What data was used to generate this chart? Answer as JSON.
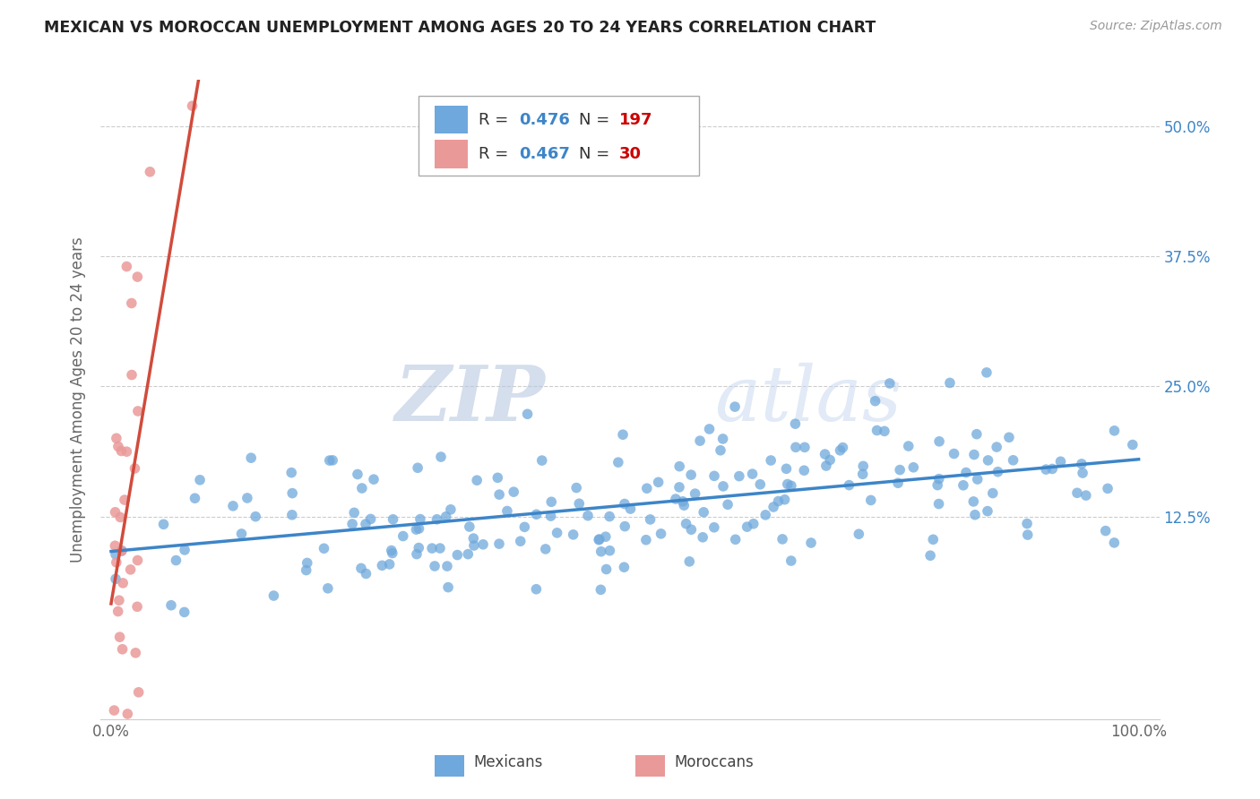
{
  "title": "MEXICAN VS MOROCCAN UNEMPLOYMENT AMONG AGES 20 TO 24 YEARS CORRELATION CHART",
  "source": "Source: ZipAtlas.com",
  "ylabel": "Unemployment Among Ages 20 to 24 years",
  "ytick_values": [
    0.125,
    0.25,
    0.375,
    0.5
  ],
  "ytick_labels": [
    "12.5%",
    "25.0%",
    "37.5%",
    "50.0%"
  ],
  "xlim": [
    -0.01,
    1.02
  ],
  "ylim": [
    -0.07,
    0.545
  ],
  "blue_color": "#6fa8dc",
  "pink_color": "#ea9999",
  "blue_line_color": "#3d85c8",
  "pink_line_color": "#d14b3b",
  "title_color": "#222222",
  "source_color": "#999999",
  "legend_r_color": "#3d85c8",
  "legend_n_color": "#cc0000",
  "watermark_zip": "ZIP",
  "watermark_atlas": "atlas",
  "watermark_color": "#c9d9ef",
  "legend_label1": "Mexicans",
  "legend_label2": "Moroccans",
  "R1": "0.476",
  "N1": "197",
  "R2": "0.467",
  "N2": "30",
  "grid_color": "#cccccc",
  "bg_color": "#ffffff",
  "scatter_size": 70,
  "seed_mex": 42,
  "seed_mor": 123
}
